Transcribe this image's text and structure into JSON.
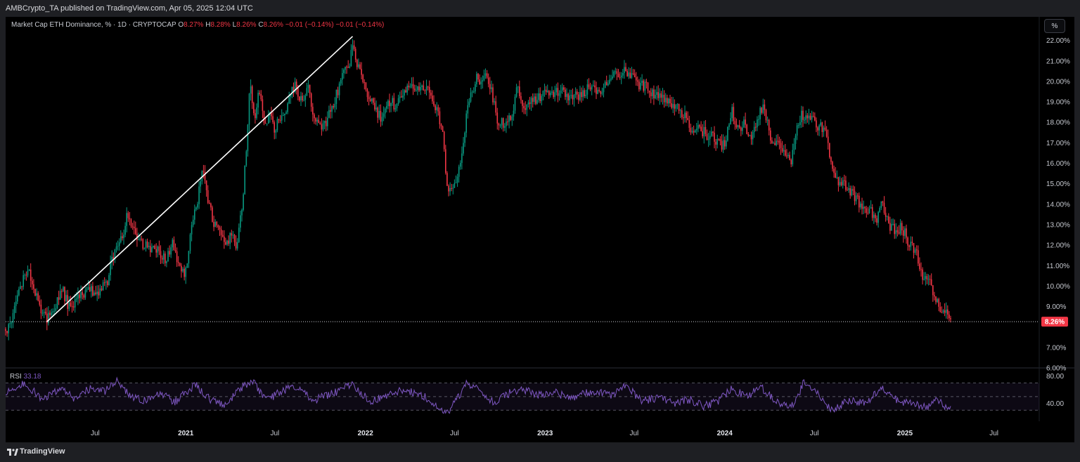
{
  "header": {
    "publisher_line": "AMBCrypto_TA published on TradingView.com, Apr 05, 2025 12:04 UTC"
  },
  "legend": {
    "symbol": "Market Cap ETH Dominance, % · 1D · CRYPTOCAP",
    "open_label": "O",
    "open_value": "8.27%",
    "high_label": "H",
    "high_value": "8.28%",
    "low_label": "L",
    "low_value": "8.26%",
    "close_label": "C",
    "close_value": "8.26%",
    "change": "−0.01 (−0.14%)",
    "change2": "−0.01 (−0.14%)"
  },
  "scale_button": {
    "label": "%"
  },
  "rsi": {
    "name": "RSI",
    "value": "33.18"
  },
  "footer": {
    "brand": "TradingView"
  },
  "colors": {
    "up": "#089981",
    "down": "#f23645",
    "rsi_line": "#7e57c2",
    "trendline": "#ffffff",
    "badge": "#f23645"
  },
  "chart_data": [
    {
      "type": "line",
      "title": "Market Cap ETH Dominance, % · 1D · CRYPTOCAP",
      "ylabel": "%",
      "y_ticks": [
        "22.00%",
        "21.00%",
        "20.00%",
        "19.00%",
        "18.00%",
        "17.00%",
        "16.00%",
        "15.00%",
        "14.00%",
        "13.00%",
        "12.00%",
        "11.00%",
        "10.00%",
        "9.00%",
        "8.26%",
        "7.00%",
        "6.00%"
      ],
      "ylim": [
        6,
        22.4
      ],
      "x_ticks": [
        "Jul",
        "2021",
        "Jul",
        "2022",
        "Jul",
        "2023",
        "Jul",
        "2024",
        "Jul",
        "2025",
        "Jul"
      ],
      "last_price": "8.26%",
      "series": [
        {
          "values": [
            [
              "2020-01-01",
              7.9
            ],
            [
              "2020-01-10",
              8.0
            ],
            [
              "2020-01-25",
              9.6
            ],
            [
              "2020-02-10",
              10.6
            ],
            [
              "2020-02-22",
              10.5
            ],
            [
              "2020-03-10",
              8.9
            ],
            [
              "2020-03-25",
              8.3
            ],
            [
              "2020-04-10",
              9.0
            ],
            [
              "2020-04-25",
              9.8
            ],
            [
              "2020-05-10",
              8.9
            ],
            [
              "2020-05-25",
              9.3
            ],
            [
              "2020-06-10",
              9.7
            ],
            [
              "2020-06-25",
              9.8
            ],
            [
              "2020-07-10",
              9.8
            ],
            [
              "2020-07-25",
              10.2
            ],
            [
              "2020-08-10",
              11.9
            ],
            [
              "2020-08-25",
              12.4
            ],
            [
              "2020-09-05",
              13.6
            ],
            [
              "2020-09-20",
              12.4
            ],
            [
              "2020-10-05",
              12.0
            ],
            [
              "2020-10-20",
              11.8
            ],
            [
              "2020-11-05",
              11.7
            ],
            [
              "2020-11-20",
              11.3
            ],
            [
              "2020-12-05",
              12.0
            ],
            [
              "2020-12-20",
              10.8
            ],
            [
              "2020-12-31",
              10.6
            ],
            [
              "2021-01-10",
              12.5
            ],
            [
              "2021-01-25",
              14.2
            ],
            [
              "2021-02-05",
              16.0
            ],
            [
              "2021-02-15",
              14.3
            ],
            [
              "2021-02-25",
              13.2
            ],
            [
              "2021-03-10",
              12.8
            ],
            [
              "2021-03-25",
              12.2
            ],
            [
              "2021-04-05",
              12.5
            ],
            [
              "2021-04-15",
              12.0
            ],
            [
              "2021-04-25",
              13.8
            ],
            [
              "2021-05-05",
              17.0
            ],
            [
              "2021-05-12",
              20.3
            ],
            [
              "2021-05-20",
              18.0
            ],
            [
              "2021-05-30",
              19.6
            ],
            [
              "2021-06-10",
              17.8
            ],
            [
              "2021-06-20",
              18.6
            ],
            [
              "2021-06-30",
              17.7
            ],
            [
              "2021-07-10",
              18.2
            ],
            [
              "2021-07-25",
              18.8
            ],
            [
              "2021-08-10",
              19.8
            ],
            [
              "2021-08-25",
              18.9
            ],
            [
              "2021-09-05",
              19.9
            ],
            [
              "2021-09-20",
              18.2
            ],
            [
              "2021-10-05",
              17.6
            ],
            [
              "2021-10-20",
              18.4
            ],
            [
              "2021-11-05",
              19.5
            ],
            [
              "2021-11-20",
              20.5
            ],
            [
              "2021-12-01",
              21.0
            ],
            [
              "2021-12-06",
              21.9
            ],
            [
              "2021-12-15",
              20.9
            ],
            [
              "2021-12-25",
              20.1
            ],
            [
              "2022-01-05",
              19.2
            ],
            [
              "2022-01-20",
              18.7
            ],
            [
              "2022-02-05",
              18.1
            ],
            [
              "2022-02-20",
              19.1
            ],
            [
              "2022-03-05",
              18.7
            ],
            [
              "2022-03-20",
              19.6
            ],
            [
              "2022-04-05",
              19.8
            ],
            [
              "2022-04-20",
              19.5
            ],
            [
              "2022-05-05",
              19.6
            ],
            [
              "2022-05-20",
              19.0
            ],
            [
              "2022-06-05",
              17.8
            ],
            [
              "2022-06-15",
              15.2
            ],
            [
              "2022-06-22",
              14.6
            ],
            [
              "2022-07-05",
              15.3
            ],
            [
              "2022-07-15",
              16.2
            ],
            [
              "2022-07-25",
              18.3
            ],
            [
              "2022-08-05",
              19.4
            ],
            [
              "2022-08-15",
              20.3
            ],
            [
              "2022-08-25",
              20.0
            ],
            [
              "2022-09-05",
              20.4
            ],
            [
              "2022-09-15",
              19.5
            ],
            [
              "2022-09-25",
              18.2
            ],
            [
              "2022-10-10",
              17.9
            ],
            [
              "2022-10-25",
              18.4
            ],
            [
              "2022-11-05",
              19.6
            ],
            [
              "2022-11-20",
              18.8
            ],
            [
              "2022-12-05",
              19.1
            ],
            [
              "2022-12-20",
              19.2
            ],
            [
              "2023-01-05",
              19.6
            ],
            [
              "2023-01-20",
              19.4
            ],
            [
              "2023-02-05",
              19.5
            ],
            [
              "2023-02-20",
              19.2
            ],
            [
              "2023-03-05",
              19.3
            ],
            [
              "2023-03-20",
              19.5
            ],
            [
              "2023-04-05",
              19.8
            ],
            [
              "2023-04-20",
              19.5
            ],
            [
              "2023-05-05",
              19.9
            ],
            [
              "2023-05-20",
              20.2
            ],
            [
              "2023-06-05",
              20.4
            ],
            [
              "2023-06-15",
              20.6
            ],
            [
              "2023-06-25",
              20.2
            ],
            [
              "2023-07-10",
              19.9
            ],
            [
              "2023-07-25",
              19.7
            ],
            [
              "2023-08-10",
              19.4
            ],
            [
              "2023-08-25",
              19.1
            ],
            [
              "2023-09-10",
              19.0
            ],
            [
              "2023-09-25",
              18.8
            ],
            [
              "2023-10-10",
              18.3
            ],
            [
              "2023-10-25",
              17.6
            ],
            [
              "2023-11-10",
              17.7
            ],
            [
              "2023-11-25",
              17.4
            ],
            [
              "2023-12-10",
              17.3
            ],
            [
              "2023-12-25",
              16.8
            ],
            [
              "2024-01-05",
              17.2
            ],
            [
              "2024-01-15",
              18.7
            ],
            [
              "2024-01-25",
              17.6
            ],
            [
              "2024-02-10",
              17.9
            ],
            [
              "2024-02-25",
              17.2
            ],
            [
              "2024-03-10",
              18.4
            ],
            [
              "2024-03-20",
              18.8
            ],
            [
              "2024-04-05",
              17.0
            ],
            [
              "2024-04-20",
              16.9
            ],
            [
              "2024-05-05",
              16.4
            ],
            [
              "2024-05-15",
              15.9
            ],
            [
              "2024-05-25",
              17.5
            ],
            [
              "2024-06-05",
              18.3
            ],
            [
              "2024-06-20",
              18.5
            ],
            [
              "2024-07-05",
              17.9
            ],
            [
              "2024-07-20",
              17.7
            ],
            [
              "2024-08-05",
              16.1
            ],
            [
              "2024-08-20",
              15.0
            ],
            [
              "2024-09-05",
              14.9
            ],
            [
              "2024-09-20",
              14.3
            ],
            [
              "2024-10-05",
              14.0
            ],
            [
              "2024-10-20",
              13.7
            ],
            [
              "2024-11-05",
              13.3
            ],
            [
              "2024-11-15",
              14.0
            ],
            [
              "2024-11-25",
              13.2
            ],
            [
              "2024-12-10",
              12.7
            ],
            [
              "2024-12-25",
              12.9
            ],
            [
              "2025-01-10",
              12.1
            ],
            [
              "2025-01-25",
              11.6
            ],
            [
              "2025-02-05",
              10.6
            ],
            [
              "2025-02-15",
              10.2
            ],
            [
              "2025-02-25",
              10.0
            ],
            [
              "2025-03-05",
              9.3
            ],
            [
              "2025-03-15",
              8.9
            ],
            [
              "2025-03-25",
              8.7
            ],
            [
              "2025-04-05",
              8.26
            ]
          ]
        }
      ],
      "annotations": [
        {
          "type": "trendline",
          "from": [
            "2020-03-25",
            8.26
          ],
          "to": [
            "2021-12-06",
            22.2
          ]
        },
        {
          "type": "horizontal-line",
          "y": 8.26
        }
      ]
    },
    {
      "type": "line",
      "title": "RSI",
      "y_ticks": [
        "80.00",
        "40.00"
      ],
      "ylim": [
        20,
        90
      ],
      "bands": [
        70,
        50,
        30
      ],
      "series": [
        {
          "name": "RSI",
          "values": [
            [
              "2020-01-01",
              55
            ],
            [
              "2020-02-10",
              70
            ],
            [
              "2020-03-15",
              45
            ],
            [
              "2020-04-20",
              60
            ],
            [
              "2020-05-20",
              48
            ],
            [
              "2020-06-20",
              62
            ],
            [
              "2020-07-20",
              58
            ],
            [
              "2020-08-15",
              72
            ],
            [
              "2020-09-10",
              50
            ],
            [
              "2020-10-10",
              44
            ],
            [
              "2020-11-10",
              56
            ],
            [
              "2020-12-10",
              42
            ],
            [
              "2021-01-20",
              68
            ],
            [
              "2021-02-15",
              48
            ],
            [
              "2021-03-20",
              38
            ],
            [
              "2021-04-20",
              60
            ],
            [
              "2021-05-15",
              75
            ],
            [
              "2021-06-15",
              45
            ],
            [
              "2021-07-15",
              58
            ],
            [
              "2021-08-15",
              66
            ],
            [
              "2021-09-15",
              44
            ],
            [
              "2021-10-15",
              52
            ],
            [
              "2021-11-20",
              62
            ],
            [
              "2021-12-05",
              70
            ],
            [
              "2022-01-10",
              42
            ],
            [
              "2022-02-10",
              52
            ],
            [
              "2022-03-15",
              60
            ],
            [
              "2022-04-20",
              55
            ],
            [
              "2022-05-20",
              40
            ],
            [
              "2022-06-18",
              25
            ],
            [
              "2022-07-25",
              68
            ],
            [
              "2022-08-20",
              62
            ],
            [
              "2022-09-20",
              40
            ],
            [
              "2022-10-20",
              55
            ],
            [
              "2022-11-15",
              62
            ],
            [
              "2022-12-15",
              52
            ],
            [
              "2023-01-20",
              56
            ],
            [
              "2023-02-20",
              48
            ],
            [
              "2023-03-20",
              55
            ],
            [
              "2023-04-20",
              58
            ],
            [
              "2023-05-20",
              52
            ],
            [
              "2023-06-15",
              66
            ],
            [
              "2023-07-15",
              44
            ],
            [
              "2023-08-20",
              48
            ],
            [
              "2023-09-20",
              40
            ],
            [
              "2023-10-20",
              46
            ],
            [
              "2023-11-20",
              36
            ],
            [
              "2023-12-20",
              44
            ],
            [
              "2024-01-15",
              62
            ],
            [
              "2024-02-15",
              50
            ],
            [
              "2024-03-15",
              64
            ],
            [
              "2024-04-20",
              40
            ],
            [
              "2024-05-20",
              36
            ],
            [
              "2024-06-10",
              72
            ],
            [
              "2024-07-10",
              52
            ],
            [
              "2024-08-05",
              30
            ],
            [
              "2024-09-05",
              44
            ],
            [
              "2024-10-10",
              40
            ],
            [
              "2024-11-15",
              62
            ],
            [
              "2024-12-20",
              42
            ],
            [
              "2025-01-20",
              40
            ],
            [
              "2025-02-15",
              34
            ],
            [
              "2025-03-05",
              48
            ],
            [
              "2025-03-20",
              36
            ],
            [
              "2025-04-05",
              33.18
            ]
          ]
        }
      ]
    }
  ]
}
